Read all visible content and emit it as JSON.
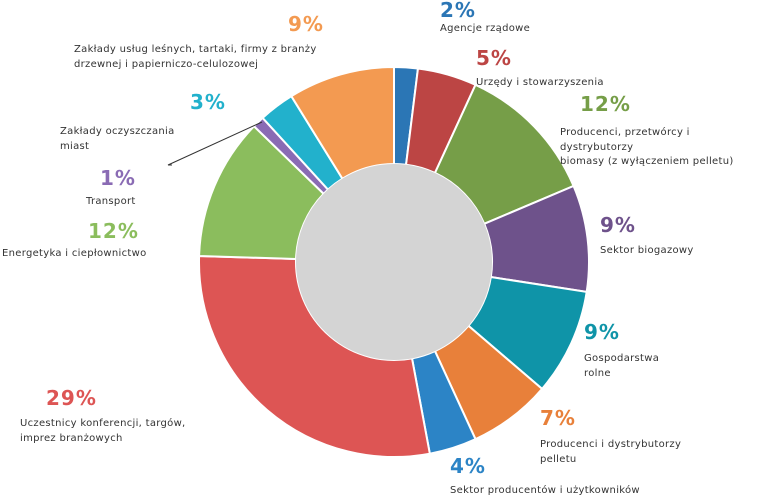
{
  "chart_data": {
    "type": "pie",
    "donut": true,
    "slices": [
      {
        "label": "Agencje rządowe",
        "value": 2,
        "pct_text": "2%",
        "color": "#2b76b5"
      },
      {
        "label": "Urzędy i stowarzyszenia",
        "value": 5,
        "pct_text": "5%",
        "color": "#bc4544"
      },
      {
        "label": "Producenci, przetwórcy i dystrybutorzy biomasy (z wyłączeniem pelletu)",
        "value": 12,
        "pct_text": "12%",
        "color": "#769e48",
        "lines": [
          "Producenci, przetwórcy i",
          "dystrybutorzy",
          "biomasy (z wyłączeniem pelletu)"
        ]
      },
      {
        "label": "Sektor biogazowy",
        "value": 9,
        "pct_text": "9%",
        "color": "#6e528b"
      },
      {
        "label": "Gospodarstwa rolne",
        "value": 9,
        "pct_text": "9%",
        "color": "#0f94a8",
        "lines": [
          "Gospodarstwa",
          "rolne"
        ]
      },
      {
        "label": "Producenci i dystrybutorzy pelletu",
        "value": 7,
        "pct_text": "7%",
        "color": "#e8803a",
        "lines": [
          "Producenci i dystrybutorzy",
          "pelletu"
        ]
      },
      {
        "label": "Sektor producentów i użytkowników",
        "value": 4,
        "pct_text": "4%",
        "color": "#2c84c6"
      },
      {
        "label": "Uczestnicy konferencji, targów, imprez branżowych",
        "value": 29,
        "pct_text": "29%",
        "color": "#dd5554",
        "lines": [
          "Uczestnicy konferencji, targów,",
          "imprez branżowych"
        ]
      },
      {
        "label": "Energetyka i ciepłownictwo",
        "value": 12,
        "pct_text": "12%",
        "color": "#8bbd5d"
      },
      {
        "label": "Transport",
        "value": 1,
        "pct_text": "1%",
        "color": "#8a6bb4"
      },
      {
        "label": "Zakłady oczyszczania miast",
        "value": 3,
        "pct_text": "3%",
        "color": "#22b1cc",
        "lines": [
          "Zakłady oczyszczania",
          "miast"
        ]
      },
      {
        "label": "Zakłady usług leśnych, tartaki, firmy z branży drzewnej i papierniczo-celulozowej",
        "value": 9,
        "pct_text": "9%",
        "color": "#f39a51",
        "lines": [
          "Zakłady usług leśnych, tartaki, firmy z branży",
          "drzewnej i papierniczo-celulozowej"
        ]
      }
    ],
    "center_color": "#d4d4d4"
  }
}
